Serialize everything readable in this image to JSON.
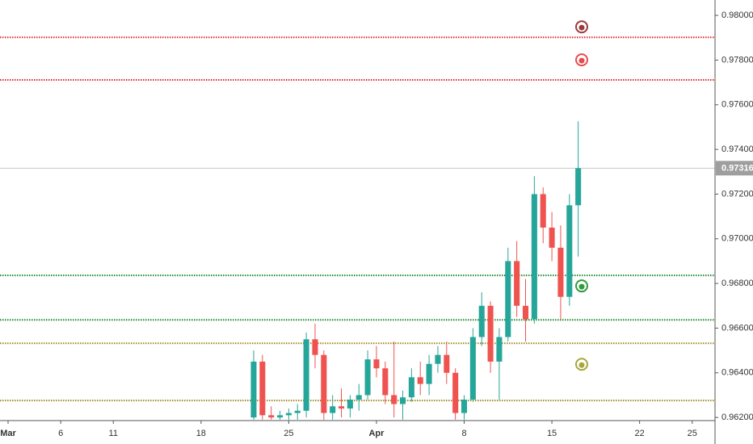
{
  "chart_data": {
    "type": "candlestick",
    "up_color": "#26a69a",
    "down_color": "#ef5350",
    "xlim": [
      -0.46,
      40.3
    ],
    "ylim": [
      0.96186,
      0.98069
    ],
    "xticks": [
      {
        "value": 0,
        "label": "Mar"
      },
      {
        "value": 3,
        "label": "6"
      },
      {
        "value": 6,
        "label": "11"
      },
      {
        "value": 11,
        "label": "18"
      },
      {
        "value": 16,
        "label": "25"
      },
      {
        "value": 21,
        "label": "Apr"
      },
      {
        "value": 26,
        "label": "8"
      },
      {
        "value": 31,
        "label": "15"
      },
      {
        "value": 36,
        "label": "22"
      },
      {
        "value": 39,
        "label": "25"
      }
    ],
    "yticks": [
      {
        "value": 0.98,
        "label": "0.98000"
      },
      {
        "value": 0.978,
        "label": "0.97800"
      },
      {
        "value": 0.976,
        "label": "0.97600"
      },
      {
        "value": 0.974,
        "label": "0.97400"
      },
      {
        "value": 0.972,
        "label": "0.97200"
      },
      {
        "value": 0.97,
        "label": "0.97000"
      },
      {
        "value": 0.968,
        "label": "0.96800"
      },
      {
        "value": 0.966,
        "label": "0.96600"
      },
      {
        "value": 0.964,
        "label": "0.96400"
      },
      {
        "value": 0.962,
        "label": "0.96200"
      }
    ],
    "x": [
      14,
      14.5,
      15,
      15.5,
      16,
      16.5,
      17,
      17.5,
      18,
      18.5,
      19,
      19.5,
      20,
      20.5,
      21,
      21.5,
      22,
      22.5,
      23,
      23.5,
      24,
      24.5,
      25,
      25.5,
      26,
      26.5,
      27,
      27.5,
      28,
      28.5,
      29,
      29.5,
      30,
      30.5,
      31,
      31.5,
      32,
      32.5
    ],
    "open": [
      0.962,
      0.9645,
      0.9621,
      0.962,
      0.9621,
      0.9622,
      0.9623,
      0.9655,
      0.9648,
      0.9622,
      0.9625,
      0.9624,
      0.9628,
      0.963,
      0.9646,
      0.9642,
      0.963,
      0.9626,
      0.9629,
      0.9638,
      0.9635,
      0.9644,
      0.9648,
      0.964,
      0.9622,
      0.9628,
      0.9656,
      0.967,
      0.9645,
      0.9656,
      0.969,
      0.967,
      0.9664,
      0.972,
      0.9705,
      0.9696,
      0.9674,
      0.9715
    ],
    "high": [
      0.965,
      0.9648,
      0.9625,
      0.9623,
      0.9624,
      0.9626,
      0.9658,
      0.9662,
      0.965,
      0.963,
      0.9633,
      0.963,
      0.9635,
      0.965,
      0.9652,
      0.9645,
      0.9654,
      0.9632,
      0.9642,
      0.9645,
      0.9648,
      0.9652,
      0.9654,
      0.9642,
      0.963,
      0.966,
      0.9676,
      0.9672,
      0.966,
      0.9696,
      0.9699,
      0.9682,
      0.9728,
      0.9723,
      0.9712,
      0.9706,
      0.972,
      0.97526
    ],
    "low": [
      0.9619,
      0.9619,
      0.9619,
      0.9619,
      0.9619,
      0.9619,
      0.962,
      0.9642,
      0.9619,
      0.9619,
      0.962,
      0.962,
      0.9623,
      0.9628,
      0.9638,
      0.9626,
      0.962,
      0.9619,
      0.9627,
      0.963,
      0.963,
      0.964,
      0.9635,
      0.9619,
      0.9619,
      0.9627,
      0.9652,
      0.964,
      0.9628,
      0.9654,
      0.9665,
      0.9654,
      0.9662,
      0.9698,
      0.969,
      0.9664,
      0.967,
      0.9692
    ],
    "close": [
      0.9645,
      0.9621,
      0.962,
      0.9621,
      0.9622,
      0.9623,
      0.9655,
      0.9648,
      0.9622,
      0.9625,
      0.9624,
      0.9628,
      0.963,
      0.9646,
      0.9642,
      0.963,
      0.9626,
      0.9629,
      0.9638,
      0.9635,
      0.9644,
      0.9648,
      0.964,
      0.9622,
      0.9628,
      0.9656,
      0.967,
      0.9645,
      0.9656,
      0.969,
      0.967,
      0.9664,
      0.972,
      0.9705,
      0.9696,
      0.9674,
      0.9715,
      0.97316
    ],
    "levels": [
      {
        "value": 0.97902,
        "color": "#e0282e"
      },
      {
        "value": 0.97711,
        "color": "#e0282e"
      },
      {
        "value": 0.96836,
        "color": "#1e8c2e"
      },
      {
        "value": 0.96637,
        "color": "#1e8c2e"
      },
      {
        "value": 0.96532,
        "color": "#a08a1e"
      },
      {
        "value": 0.96276,
        "color": "#a08a1e"
      }
    ],
    "markers": [
      {
        "x": 32.7,
        "value": 0.97949,
        "color": "#9c3a3a"
      },
      {
        "x": 32.7,
        "value": 0.97801,
        "color": "#e84a4a"
      },
      {
        "x": 32.7,
        "value": 0.96789,
        "color": "#2e9c3a"
      },
      {
        "x": 32.7,
        "value": 0.96438,
        "color": "#a8a63a"
      }
    ],
    "last_price": {
      "value": 0.97316,
      "label": "0.97316"
    }
  }
}
